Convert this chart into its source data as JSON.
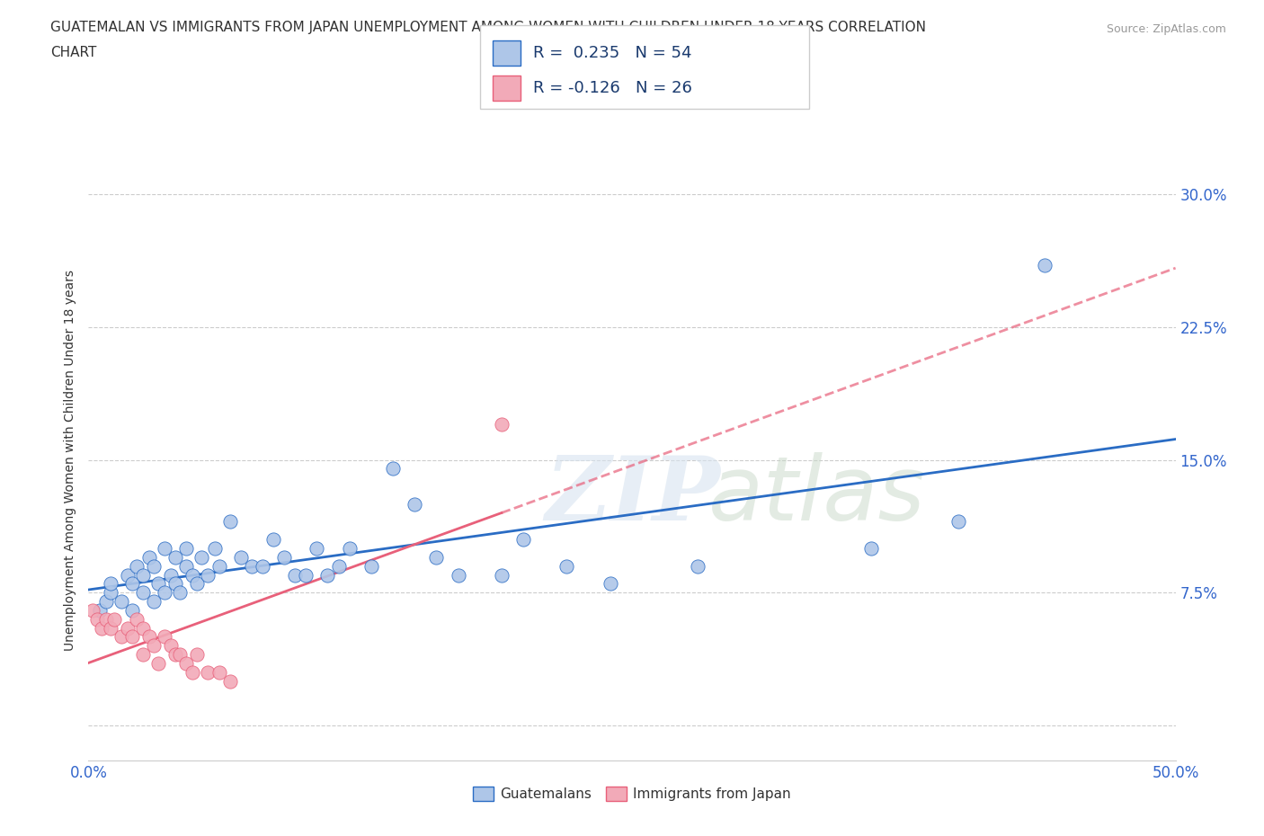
{
  "title_line1": "GUATEMALAN VS IMMIGRANTS FROM JAPAN UNEMPLOYMENT AMONG WOMEN WITH CHILDREN UNDER 18 YEARS CORRELATION",
  "title_line2": "CHART",
  "source": "Source: ZipAtlas.com",
  "ylabel": "Unemployment Among Women with Children Under 18 years",
  "xlim": [
    0.0,
    0.5
  ],
  "ylim": [
    -0.02,
    0.32
  ],
  "yticks": [
    0.0,
    0.075,
    0.15,
    0.225,
    0.3
  ],
  "yticklabels_right": [
    "",
    "7.5%",
    "15.0%",
    "22.5%",
    "30.0%"
  ],
  "xticks": [
    0.0,
    0.1,
    0.2,
    0.3,
    0.4,
    0.5
  ],
  "xticklabels": [
    "0.0%",
    "",
    "",
    "",
    "",
    "50.0%"
  ],
  "guatemalan_R": 0.235,
  "guatemalan_N": 54,
  "japan_R": -0.126,
  "japan_N": 26,
  "guatemalan_color": "#aec6e8",
  "japan_color": "#f2aab8",
  "trendline_guatemalan_color": "#2a6cc4",
  "trendline_japan_color": "#e8607a",
  "background_color": "#ffffff",
  "grid_color": "#cccccc",
  "watermark_zip": "ZIP",
  "watermark_atlas": "atlas",
  "guatemalan_x": [
    0.005,
    0.008,
    0.01,
    0.01,
    0.015,
    0.018,
    0.02,
    0.02,
    0.022,
    0.025,
    0.025,
    0.028,
    0.03,
    0.03,
    0.032,
    0.035,
    0.035,
    0.038,
    0.04,
    0.04,
    0.042,
    0.045,
    0.045,
    0.048,
    0.05,
    0.052,
    0.055,
    0.058,
    0.06,
    0.065,
    0.07,
    0.075,
    0.08,
    0.085,
    0.09,
    0.095,
    0.1,
    0.105,
    0.11,
    0.115,
    0.12,
    0.13,
    0.14,
    0.15,
    0.16,
    0.17,
    0.19,
    0.2,
    0.22,
    0.24,
    0.28,
    0.36,
    0.4,
    0.44
  ],
  "guatemalan_y": [
    0.065,
    0.07,
    0.075,
    0.08,
    0.07,
    0.085,
    0.065,
    0.08,
    0.09,
    0.075,
    0.085,
    0.095,
    0.07,
    0.09,
    0.08,
    0.1,
    0.075,
    0.085,
    0.08,
    0.095,
    0.075,
    0.09,
    0.1,
    0.085,
    0.08,
    0.095,
    0.085,
    0.1,
    0.09,
    0.115,
    0.095,
    0.09,
    0.09,
    0.105,
    0.095,
    0.085,
    0.085,
    0.1,
    0.085,
    0.09,
    0.1,
    0.09,
    0.145,
    0.125,
    0.095,
    0.085,
    0.085,
    0.105,
    0.09,
    0.08,
    0.09,
    0.1,
    0.115,
    0.26
  ],
  "japan_x": [
    0.002,
    0.004,
    0.006,
    0.008,
    0.01,
    0.012,
    0.015,
    0.018,
    0.02,
    0.022,
    0.025,
    0.025,
    0.028,
    0.03,
    0.032,
    0.035,
    0.038,
    0.04,
    0.042,
    0.045,
    0.048,
    0.05,
    0.055,
    0.06,
    0.065,
    0.19
  ],
  "japan_y": [
    0.065,
    0.06,
    0.055,
    0.06,
    0.055,
    0.06,
    0.05,
    0.055,
    0.05,
    0.06,
    0.04,
    0.055,
    0.05,
    0.045,
    0.035,
    0.05,
    0.045,
    0.04,
    0.04,
    0.035,
    0.03,
    0.04,
    0.03,
    0.03,
    0.025,
    0.17
  ]
}
